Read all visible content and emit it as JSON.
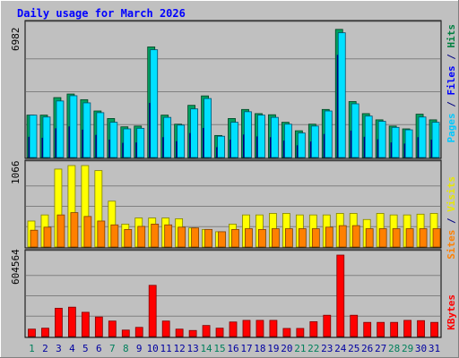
{
  "title": "Daily usage for March 2026",
  "colors": {
    "background": "#c0c0c0",
    "title": "#0000ff",
    "hits": "#008040",
    "files": "#00e8ff",
    "pages": "#00e8ff",
    "visits": "#ffff00",
    "sites": "#ff8000",
    "kbytes": "#ff0000",
    "weekend_day": "#00805c",
    "weekday": "#0000a0"
  },
  "days": [
    "1",
    "2",
    "3",
    "4",
    "5",
    "6",
    "7",
    "8",
    "9",
    "10",
    "11",
    "12",
    "13",
    "14",
    "15",
    "16",
    "17",
    "18",
    "19",
    "20",
    "21",
    "22",
    "23",
    "24",
    "25",
    "26",
    "27",
    "28",
    "29",
    "30",
    "31"
  ],
  "weekend_days": [
    "1",
    "7",
    "8",
    "14",
    "15",
    "21",
    "22",
    "28",
    "29"
  ],
  "panels": {
    "hits": {
      "max_label": "6982",
      "legend": [
        {
          "label": "Pages",
          "color": "#00c8ff"
        },
        {
          "label": " / ",
          "color": "#000080"
        },
        {
          "label": "Files",
          "color": "#0000ff"
        },
        {
          "label": " / ",
          "color": "#000080"
        },
        {
          "label": "Hits",
          "color": "#008040"
        }
      ]
    },
    "visits": {
      "max_label": "1066",
      "legend": [
        {
          "label": "Sites",
          "color": "#ff8000"
        },
        {
          "label": " / ",
          "color": "#000080"
        },
        {
          "label": "Visits",
          "color": "#e8e800"
        }
      ]
    },
    "kbytes": {
      "max_label": "604564",
      "legend": [
        {
          "label": "KBytes",
          "color": "#ff0000"
        }
      ]
    }
  },
  "chart_data": {
    "type": "bar",
    "title": "Daily usage for March 2026",
    "categories": [
      "1",
      "2",
      "3",
      "4",
      "5",
      "6",
      "7",
      "8",
      "9",
      "10",
      "11",
      "12",
      "13",
      "14",
      "15",
      "16",
      "17",
      "18",
      "19",
      "20",
      "21",
      "22",
      "23",
      "24",
      "25",
      "26",
      "27",
      "28",
      "29",
      "30",
      "31"
    ],
    "panels": [
      {
        "name": "Pages / Files / Hits",
        "max_label": 6982,
        "ylim": [
          0,
          6982
        ],
        "series": [
          {
            "name": "Hits",
            "values": [
              2250,
              2250,
              3180,
              3370,
              3070,
              2470,
              2070,
              1630,
              1670,
              5870,
              2250,
              1770,
              2770,
              3270,
              1170,
              2070,
              2550,
              2330,
              2270,
              1870,
              1420,
              1770,
              2550,
              6800,
              2970,
              2330,
              2000,
              1670,
              1520,
              2300,
              2000
            ]
          },
          {
            "name": "Files",
            "values": [
              2250,
              2150,
              3000,
              3280,
              2900,
              2380,
              1870,
              1520,
              1550,
              5720,
              2130,
              1720,
              2580,
              3130,
              1130,
              1870,
              2430,
              2250,
              2130,
              1770,
              1300,
              1670,
              2470,
              6620,
              2850,
              2200,
              1920,
              1600,
              1470,
              2150,
              1870
            ]
          },
          {
            "name": "Pages",
            "values": [
              1100,
              1050,
              1550,
              1650,
              1480,
              1200,
              950,
              780,
              800,
              2900,
              1080,
              870,
              1300,
              1570,
              550,
              950,
              1220,
              1120,
              1080,
              900,
              650,
              850,
              1250,
              5450,
              1430,
              1100,
              970,
              800,
              740,
              1080,
              950
            ]
          }
        ]
      },
      {
        "name": "Sites / Visits",
        "max_label": 1066,
        "ylim": [
          0,
          1066
        ],
        "series": [
          {
            "name": "Visits",
            "values": [
              340,
              420,
              1020,
              1066,
              1066,
              1000,
              600,
              300,
              380,
              380,
              380,
              370,
              250,
              230,
              200,
              300,
              420,
              420,
              440,
              440,
              420,
              420,
              420,
              440,
              440,
              360,
              440,
              420,
              420,
              430,
              440
            ]
          },
          {
            "name": "Sites",
            "values": [
              220,
              260,
              420,
              450,
              400,
              340,
              290,
              230,
              270,
              300,
              290,
              260,
              250,
              230,
              200,
              230,
              240,
              230,
              240,
              240,
              240,
              240,
              260,
              280,
              280,
              240,
              240,
              240,
              240,
              240,
              240
            ]
          }
        ]
      },
      {
        "name": "KBytes",
        "max_label": 604564,
        "ylim": [
          0,
          604564
        ],
        "series": [
          {
            "name": "KBytes",
            "values": [
              55000,
              62000,
              210000,
              218000,
              180000,
              145000,
              115000,
              48000,
              68000,
              380000,
              115000,
              55000,
              45000,
              82000,
              62000,
              108000,
              120000,
              120000,
              120000,
              60000,
              60000,
              110000,
              158000,
              604564,
              158000,
              105000,
              105000,
              105000,
              120000,
              118000,
              105000
            ]
          }
        ]
      }
    ]
  }
}
